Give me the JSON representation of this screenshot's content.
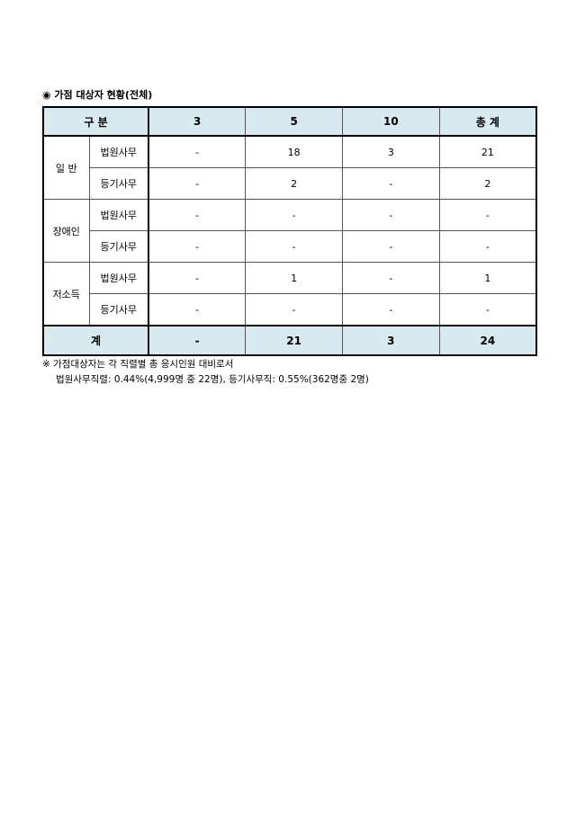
{
  "title": "◉ 가점 대상자 현황(전체)",
  "table": {
    "headers": [
      "구 분",
      "3",
      "5",
      "10",
      "총 계"
    ],
    "groups": [
      {
        "label": "일 반",
        "rows": [
          {
            "sub": "법원사무",
            "values": [
              "-",
              "18",
              "3",
              "21"
            ]
          },
          {
            "sub": "등기사무",
            "values": [
              "-",
              "2",
              "-",
              "2"
            ]
          }
        ]
      },
      {
        "label": "장애인",
        "rows": [
          {
            "sub": "법원사무",
            "values": [
              "-",
              "-",
              "-",
              "-"
            ]
          },
          {
            "sub": "등기사무",
            "values": [
              "-",
              "-",
              "-",
              "-"
            ]
          }
        ]
      },
      {
        "label": "저소득",
        "rows": [
          {
            "sub": "법원사무",
            "values": [
              "-",
              "1",
              "-",
              "1"
            ]
          },
          {
            "sub": "등기사무",
            "values": [
              "-",
              "-",
              "-",
              "-"
            ]
          }
        ]
      }
    ],
    "total": {
      "label": "계",
      "values": [
        "-",
        "21",
        "3",
        "24"
      ]
    }
  },
  "notes": [
    "※ 가점대상자는 각 직렬별 총 응시인원 대비로서",
    "법원사무직렬: 0.44%(4,999명 중 22명), 등기사무직: 0.55%(362명중 2명)"
  ],
  "colors": {
    "header_bg": "#d6eaf0"
  }
}
